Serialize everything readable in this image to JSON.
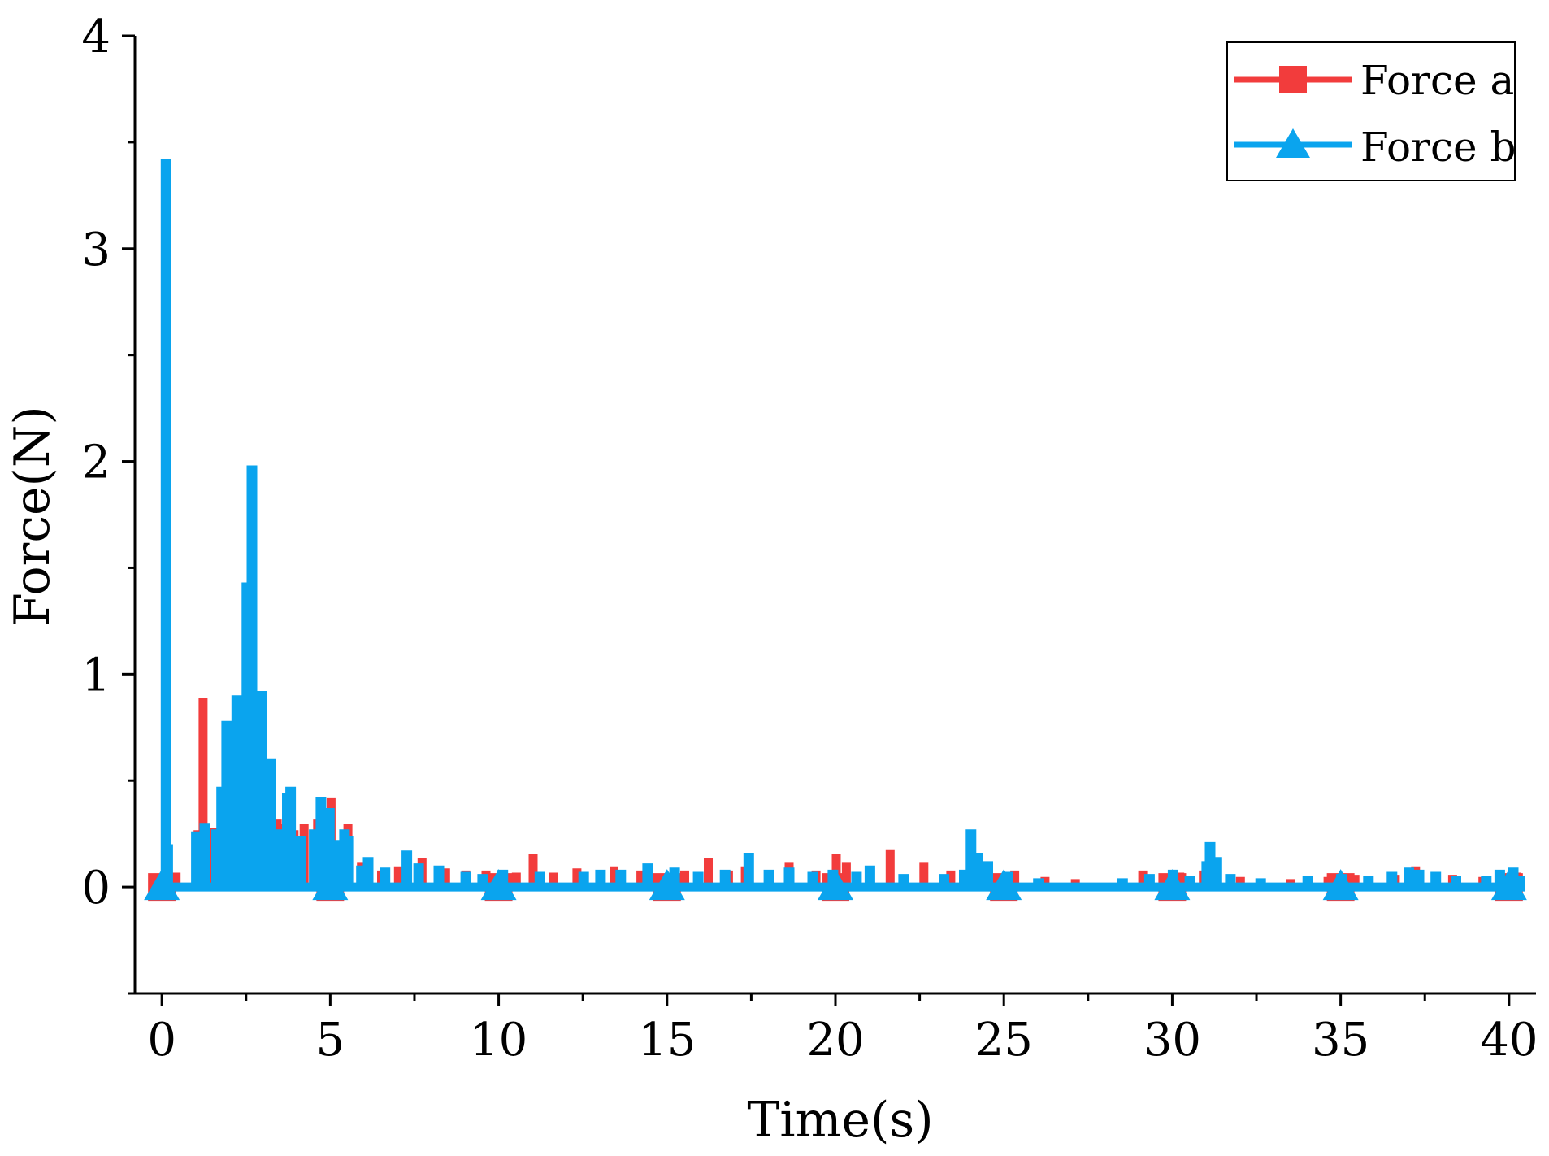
{
  "chart_data": {
    "type": "line",
    "title": "",
    "xlabel": "Time(s)",
    "ylabel": "Force(N)",
    "xlim": [
      -0.8,
      40.8
    ],
    "ylim": [
      -0.5,
      4
    ],
    "xticks": [
      0,
      5,
      10,
      15,
      20,
      25,
      30,
      35,
      40
    ],
    "yticks": [
      0,
      1,
      2,
      3,
      4
    ],
    "xtick_labels": [
      "0",
      "5",
      "10",
      "15",
      "20",
      "25",
      "30",
      "35",
      "40"
    ],
    "ytick_labels": [
      "0",
      "1",
      "2",
      "3",
      "4"
    ],
    "marker_x": [
      0,
      5,
      10,
      15,
      20,
      25,
      30,
      35,
      40
    ],
    "legend_position": "top-right",
    "series": [
      {
        "name": "Force a",
        "color": "#f23c3c",
        "marker": "square",
        "peaks": [
          [
            0.05,
            0.05
          ],
          [
            0.4,
            0.05
          ],
          [
            1.05,
            0.25
          ],
          [
            1.2,
            0.87
          ],
          [
            1.5,
            0.26
          ],
          [
            1.8,
            0.35
          ],
          [
            2.1,
            0.45
          ],
          [
            2.4,
            0.6
          ],
          [
            2.6,
            0.55
          ],
          [
            2.9,
            0.7
          ],
          [
            3.1,
            0.5
          ],
          [
            3.4,
            0.3
          ],
          [
            3.6,
            0.28
          ],
          [
            3.9,
            0.25
          ],
          [
            4.2,
            0.28
          ],
          [
            4.6,
            0.3
          ],
          [
            5.0,
            0.4
          ],
          [
            5.5,
            0.28
          ],
          [
            5.9,
            0.1
          ],
          [
            6.5,
            0.06
          ],
          [
            7.0,
            0.08
          ],
          [
            7.7,
            0.12
          ],
          [
            8.4,
            0.07
          ],
          [
            9.0,
            0.06
          ],
          [
            9.6,
            0.06
          ],
          [
            10.5,
            0.05
          ],
          [
            11.0,
            0.14
          ],
          [
            11.6,
            0.05
          ],
          [
            12.3,
            0.07
          ],
          [
            13.4,
            0.08
          ],
          [
            14.2,
            0.06
          ],
          [
            15.5,
            0.06
          ],
          [
            16.2,
            0.12
          ],
          [
            16.8,
            0.06
          ],
          [
            17.3,
            0.08
          ],
          [
            18.6,
            0.1
          ],
          [
            19.4,
            0.06
          ],
          [
            20.0,
            0.14
          ],
          [
            20.3,
            0.1
          ],
          [
            21.0,
            0.08
          ],
          [
            21.6,
            0.16
          ],
          [
            22.6,
            0.1
          ],
          [
            23.4,
            0.06
          ],
          [
            24.2,
            0.06
          ],
          [
            25.3,
            0.06
          ],
          [
            26.2,
            0.03
          ],
          [
            27.1,
            0.02
          ],
          [
            29.1,
            0.06
          ],
          [
            30.2,
            0.05
          ],
          [
            30.9,
            0.06
          ],
          [
            32.0,
            0.03
          ],
          [
            33.5,
            0.02
          ],
          [
            34.6,
            0.03
          ],
          [
            35.4,
            0.04
          ],
          [
            36.6,
            0.04
          ],
          [
            37.2,
            0.08
          ],
          [
            38.3,
            0.04
          ],
          [
            39.2,
            0.03
          ],
          [
            40.2,
            0.05
          ]
        ]
      },
      {
        "name": "Force b",
        "color": "#0aa4ee",
        "marker": "triangle",
        "peaks": [
          [
            0.1,
            3.4
          ],
          [
            0.15,
            0.18
          ],
          [
            1.0,
            0.24
          ],
          [
            1.25,
            0.28
          ],
          [
            1.6,
            0.25
          ],
          [
            1.75,
            0.45
          ],
          [
            1.9,
            0.76
          ],
          [
            2.0,
            0.6
          ],
          [
            2.2,
            0.88
          ],
          [
            2.35,
            0.45
          ],
          [
            2.5,
            1.41
          ],
          [
            2.65,
            1.96
          ],
          [
            2.8,
            0.6
          ],
          [
            2.95,
            0.9
          ],
          [
            3.1,
            0.45
          ],
          [
            3.2,
            0.58
          ],
          [
            3.45,
            0.25
          ],
          [
            3.7,
            0.42
          ],
          [
            3.8,
            0.45
          ],
          [
            4.1,
            0.22
          ],
          [
            4.5,
            0.25
          ],
          [
            4.7,
            0.4
          ],
          [
            4.95,
            0.35
          ],
          [
            5.2,
            0.2
          ],
          [
            5.4,
            0.25
          ],
          [
            5.5,
            0.22
          ],
          [
            5.9,
            0.08
          ],
          [
            6.1,
            0.12
          ],
          [
            6.6,
            0.07
          ],
          [
            7.25,
            0.15
          ],
          [
            7.6,
            0.09
          ],
          [
            8.2,
            0.08
          ],
          [
            9.0,
            0.05
          ],
          [
            9.5,
            0.04
          ],
          [
            10.1,
            0.06
          ],
          [
            11.2,
            0.05
          ],
          [
            12.5,
            0.05
          ],
          [
            13.0,
            0.06
          ],
          [
            13.6,
            0.06
          ],
          [
            14.4,
            0.09
          ],
          [
            15.2,
            0.07
          ],
          [
            15.9,
            0.05
          ],
          [
            16.7,
            0.06
          ],
          [
            17.4,
            0.14
          ],
          [
            18.0,
            0.06
          ],
          [
            18.6,
            0.07
          ],
          [
            19.3,
            0.05
          ],
          [
            19.9,
            0.06
          ],
          [
            20.6,
            0.05
          ],
          [
            21.0,
            0.08
          ],
          [
            22.0,
            0.04
          ],
          [
            23.2,
            0.04
          ],
          [
            23.8,
            0.06
          ],
          [
            24.0,
            0.25
          ],
          [
            24.2,
            0.14
          ],
          [
            24.5,
            0.1
          ],
          [
            25.1,
            0.05
          ],
          [
            26.0,
            0.02
          ],
          [
            28.5,
            0.02
          ],
          [
            29.3,
            0.04
          ],
          [
            30.0,
            0.06
          ],
          [
            30.5,
            0.03
          ],
          [
            31.0,
            0.1
          ],
          [
            31.1,
            0.19
          ],
          [
            31.3,
            0.12
          ],
          [
            31.7,
            0.04
          ],
          [
            32.6,
            0.02
          ],
          [
            34.0,
            0.03
          ],
          [
            35.0,
            0.04
          ],
          [
            35.8,
            0.03
          ],
          [
            36.5,
            0.05
          ],
          [
            37.0,
            0.07
          ],
          [
            37.3,
            0.06
          ],
          [
            37.8,
            0.05
          ],
          [
            38.4,
            0.03
          ],
          [
            39.3,
            0.03
          ],
          [
            39.7,
            0.06
          ],
          [
            40.1,
            0.07
          ],
          [
            40.3,
            0.03
          ]
        ]
      }
    ]
  }
}
